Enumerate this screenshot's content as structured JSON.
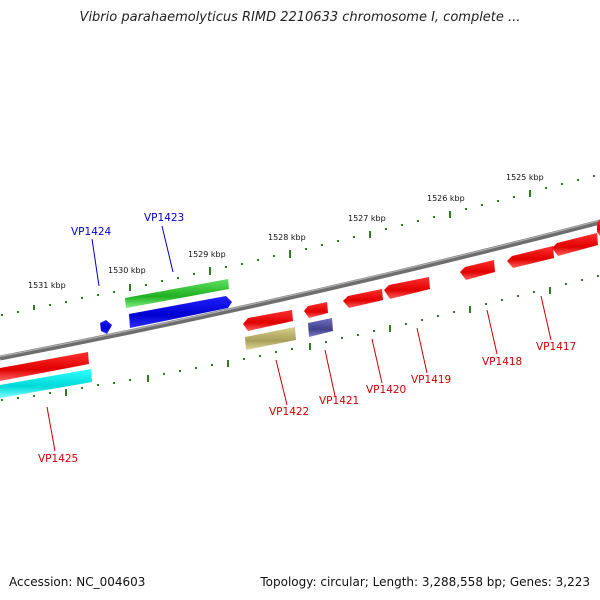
{
  "title": "Vibrio parahaemolyticus RIMD 2210633 chromosome I, complete ...",
  "footer": {
    "accession": "Accession: NC_004603",
    "topology": "Topology: circular; Length: 3,288,558 bp; Genes: 3,223"
  },
  "colors": {
    "backbone": "#808080",
    "tick": "#2e7d1e",
    "label_forward": "#0000cc",
    "label_reverse": "#cc0000"
  },
  "scale_labels": [
    "1531 kbp",
    "1530 kbp",
    "1529 kbp",
    "1528 kbp",
    "1527 kbp",
    "1526 kbp",
    "1525 kbp"
  ],
  "genes": [
    {
      "name": "VP1425",
      "strand": "reverse",
      "label_color": "#cc0000"
    },
    {
      "name": "VP1424",
      "strand": "forward",
      "label_color": "#0000cc"
    },
    {
      "name": "VP1423",
      "strand": "forward",
      "label_color": "#0000cc"
    },
    {
      "name": "VP1422",
      "strand": "reverse",
      "label_color": "#cc0000"
    },
    {
      "name": "VP1421",
      "strand": "reverse",
      "label_color": "#cc0000"
    },
    {
      "name": "VP1420",
      "strand": "reverse",
      "label_color": "#cc0000"
    },
    {
      "name": "VP1419",
      "strand": "reverse",
      "label_color": "#cc0000"
    },
    {
      "name": "VP1418",
      "strand": "reverse",
      "label_color": "#cc0000"
    },
    {
      "name": "VP1417",
      "strand": "reverse",
      "label_color": "#cc0000"
    }
  ]
}
